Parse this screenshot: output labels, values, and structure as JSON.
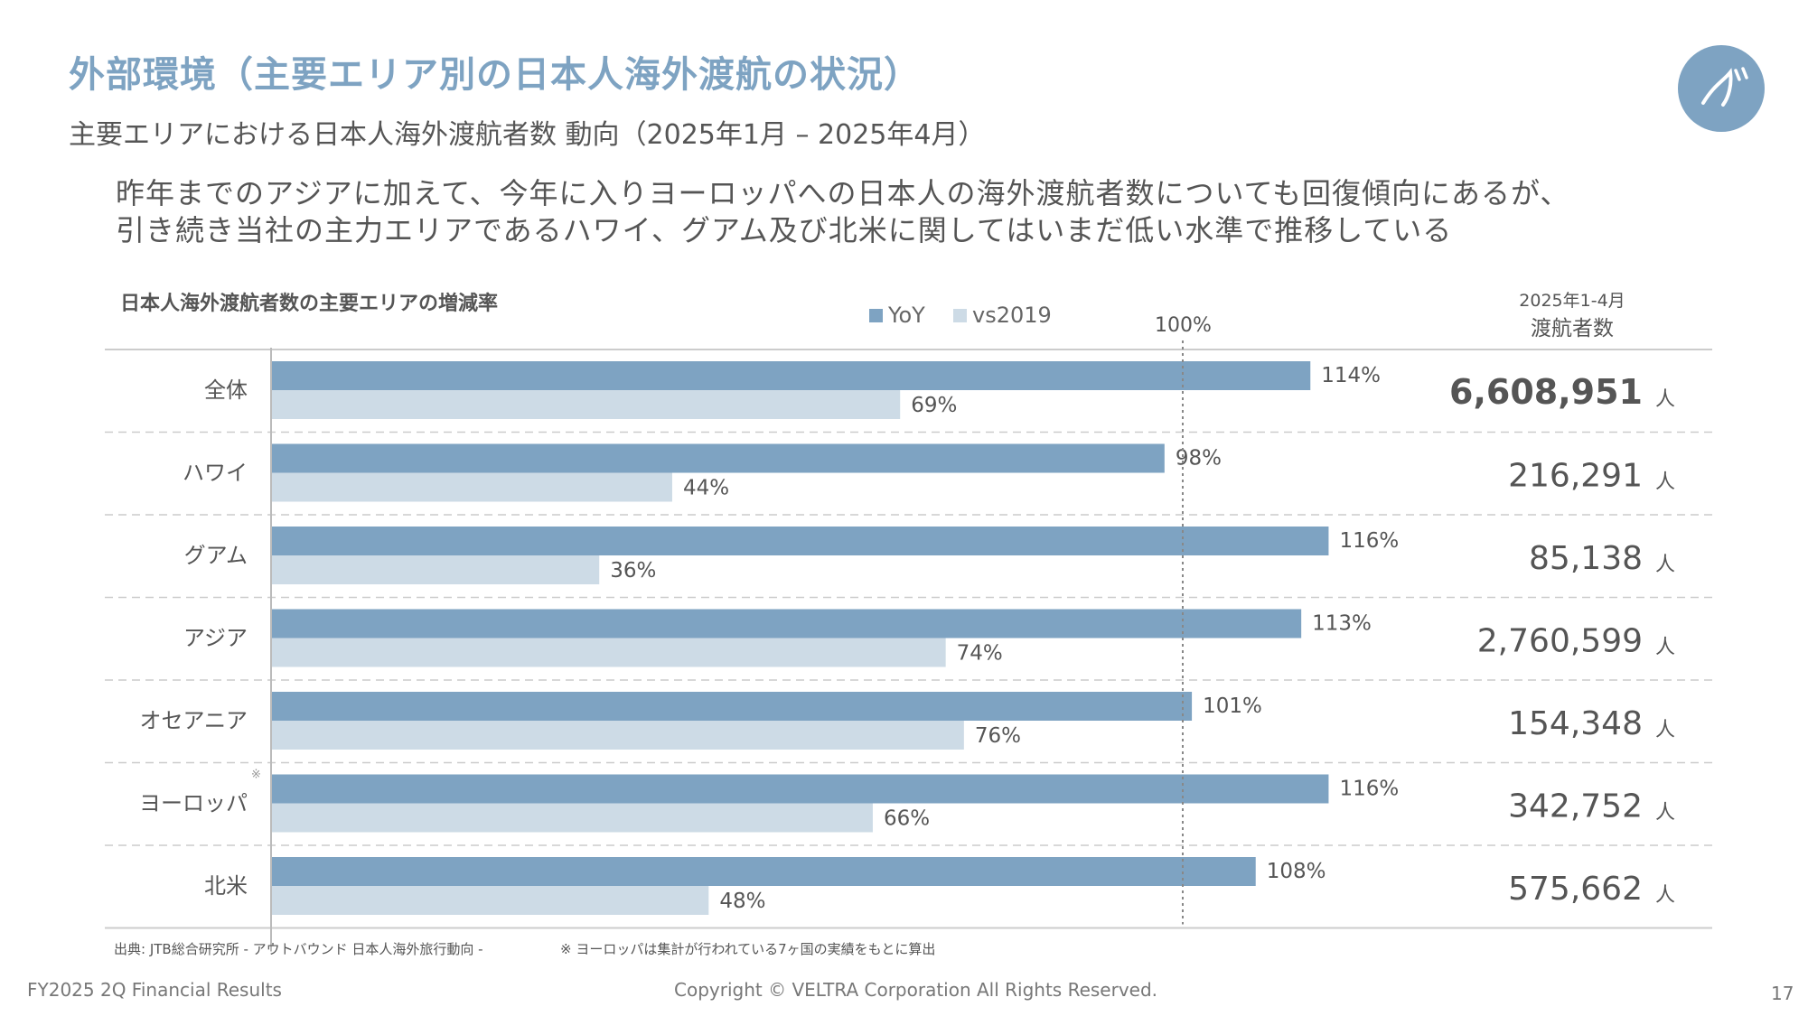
{
  "header": {
    "title": "外部環境（主要エリア別の日本人海外渡航の状況）",
    "subtitle": "主要エリアにおける日本人海外渡航者数 動向（2025年1月 – 2025年4月）",
    "logo_icon": "veltra-logo-icon"
  },
  "summary": {
    "line1": "昨年までのアジアに加えて、今年に入りヨーロッパへの日本人の海外渡航者数についても回復傾向にあるが、",
    "line2": "引き続き当社の主力エリアであるハワイ、グアム及び北米に関してはいまだ低い水準で推移している"
  },
  "chart_data": {
    "type": "bar",
    "orientation": "horizontal",
    "title": "日本人海外渡航者数の主要エリアの増減率",
    "categories": [
      "全体",
      "ハワイ",
      "グアム",
      "アジア",
      "オセアニア",
      "ヨーロッパ",
      "北米"
    ],
    "category_notes": [
      "",
      "",
      "",
      "",
      "",
      "※",
      ""
    ],
    "series": [
      {
        "name": "YoY",
        "values": [
          114,
          98,
          116,
          113,
          101,
          116,
          108
        ],
        "color": "#7ea3c2"
      },
      {
        "name": "vs2019",
        "values": [
          69,
          44,
          36,
          74,
          76,
          66,
          48
        ],
        "color": "#cddbe6"
      }
    ],
    "value_suffix": "%",
    "reference_line": {
      "value": 100,
      "label": "100%",
      "style": "dotted"
    },
    "xlim": [
      0,
      144
    ],
    "legend_position": "top",
    "grid": false,
    "counts": {
      "header_line1": "2025年1-4月",
      "header_line2": "渡航者数",
      "values": [
        "6,608,951",
        "216,291",
        "85,138",
        "2,760,599",
        "154,348",
        "342,752",
        "575,662"
      ],
      "unit": "人"
    }
  },
  "footnotes": {
    "source": "出典: JTB総合研究所 - アウトバウンド 日本人海外旅行動向 -",
    "europe": "※ ヨーロッパは集計が行われている7ヶ国の実績をもとに算出"
  },
  "footer": {
    "left": "FY2025 2Q Financial Results",
    "center": "Copyright © VELTRA Corporation All Rights Reserved.",
    "page": "17"
  }
}
